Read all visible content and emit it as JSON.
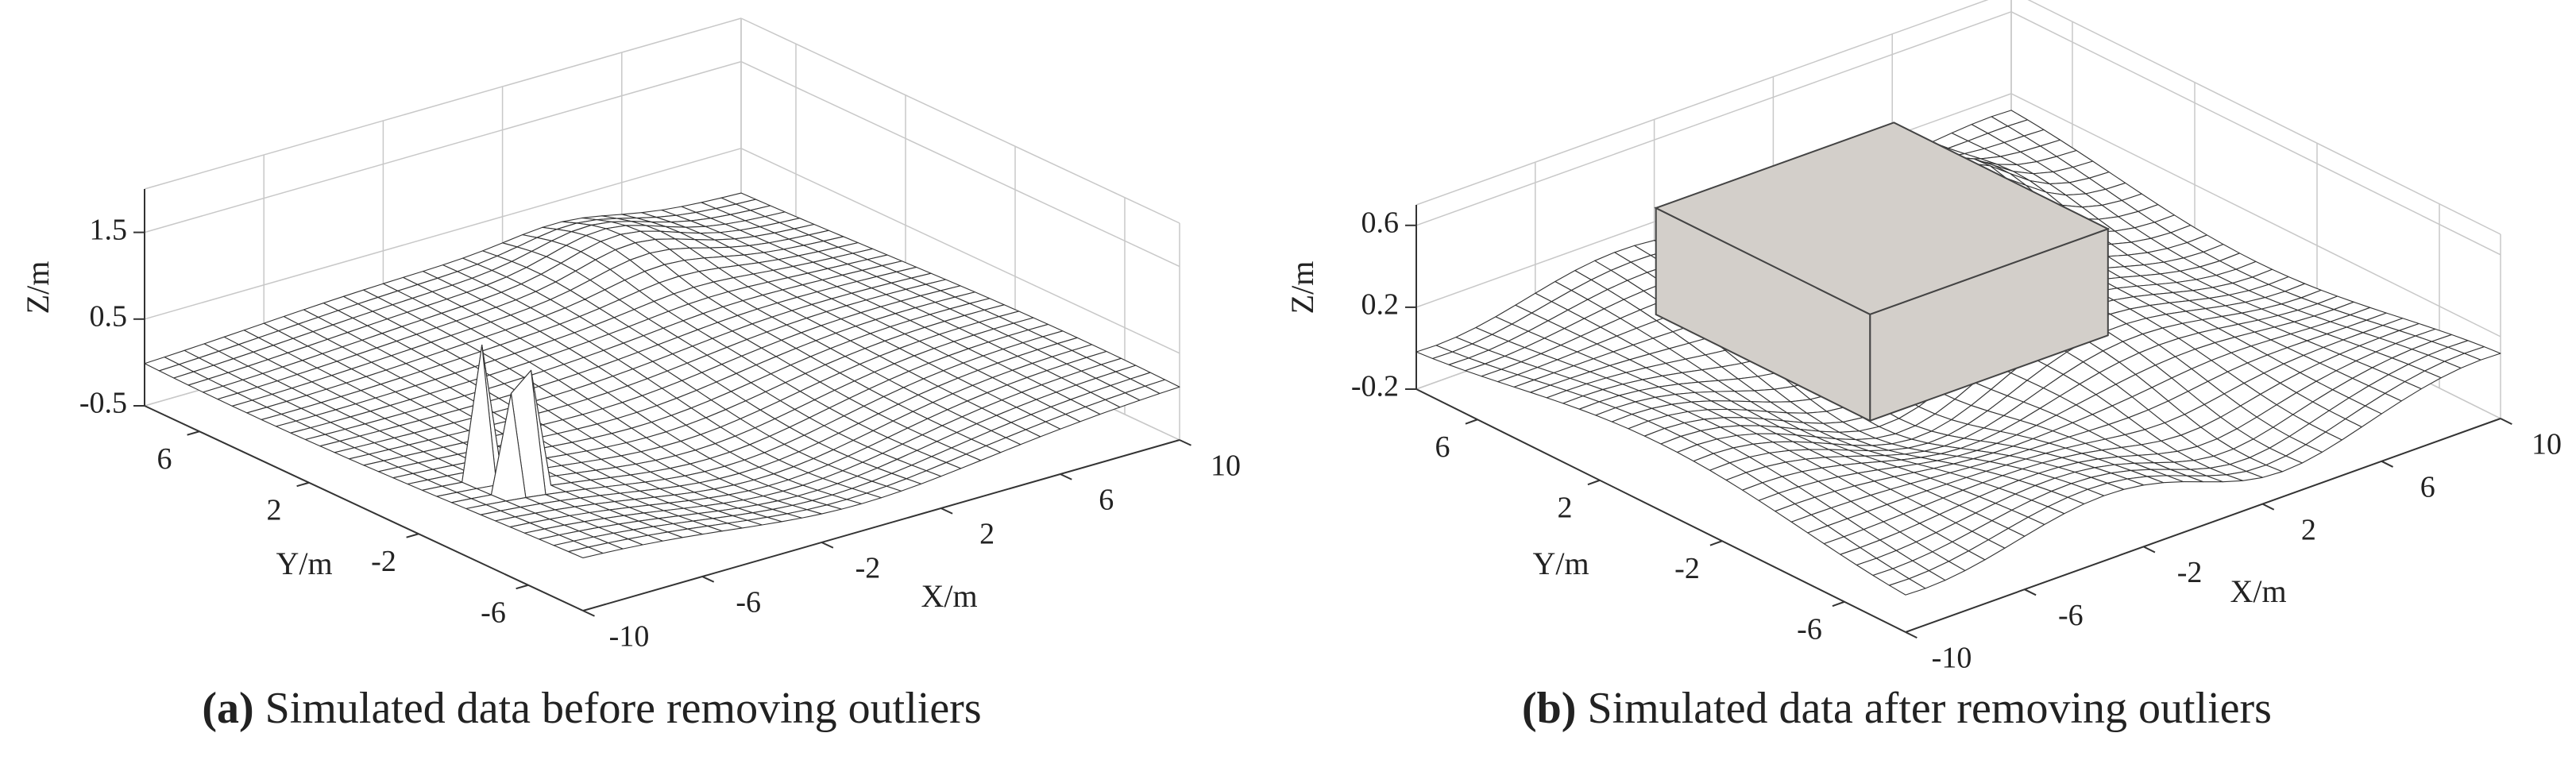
{
  "chart_data": [
    {
      "type": "surface3d",
      "caption_label": "(a)",
      "caption": "Simulated data before removing outliers",
      "xlabel": "X/m",
      "ylabel": "Y/m",
      "zlabel": "Z/m",
      "xlim": [
        -10,
        10
      ],
      "ylim": [
        -8,
        8
      ],
      "zlim": [
        -0.5,
        2
      ],
      "xticks": [
        -10,
        -6,
        -2,
        2,
        6,
        10
      ],
      "yticks": [
        -6,
        -2,
        2,
        6
      ],
      "zticks": [
        -0.5,
        0.5,
        1.5
      ],
      "grid": true
    },
    {
      "type": "surface3d",
      "caption_label": "(b)",
      "caption": "Simulated data after removing outliers",
      "xlabel": "X/m",
      "ylabel": "Y/m",
      "zlabel": "Z/m",
      "xlim": [
        -10,
        10
      ],
      "ylim": [
        -8,
        8
      ],
      "zlim": [
        -0.2,
        0.7
      ],
      "xticks": [
        -10,
        -6,
        -2,
        2,
        6,
        10
      ],
      "yticks": [
        -6,
        -2,
        2,
        6
      ],
      "zticks": [
        -0.2,
        0.2,
        0.6
      ],
      "grid": true
    }
  ]
}
